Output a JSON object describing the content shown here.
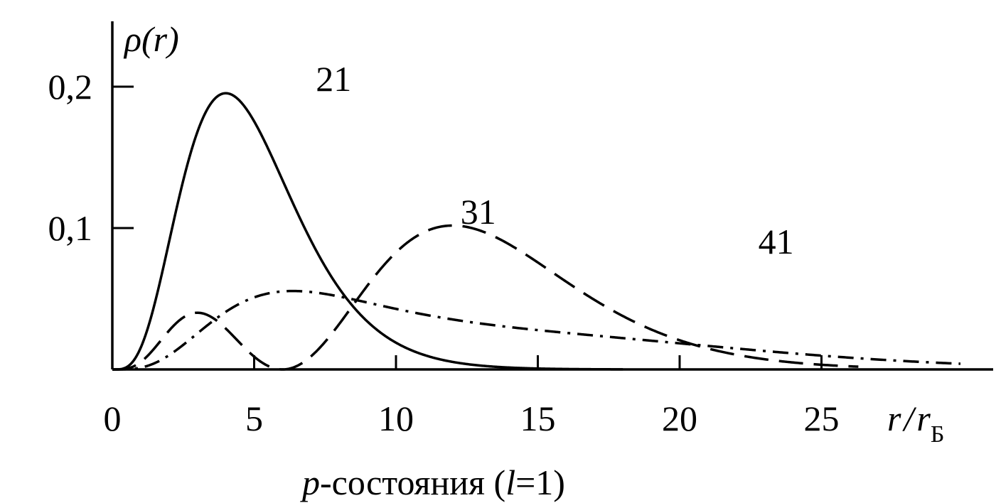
{
  "chart_data": {
    "type": "line",
    "xlim": [
      0,
      30
    ],
    "ylim": [
      0,
      0.24
    ],
    "grid": false,
    "x_ticks": [
      0,
      5,
      10,
      15,
      20,
      25
    ],
    "x_tick_labels": [
      "0",
      "5",
      "10",
      "15",
      "20",
      "25"
    ],
    "y_ticks": [
      0.1,
      0.2
    ],
    "y_tick_labels": [
      "0,1",
      "0,2"
    ],
    "ylabel": "ρ(r)",
    "xlabel_main": "r",
    "xlabel_slash": "/",
    "xlabel_denom": "r",
    "xlabel_sub": "Б",
    "caption_prefix": "p",
    "caption_text": "-состояния (",
    "caption_l": "l",
    "caption_suffix": "=1)",
    "series": [
      {
        "name": "21",
        "style": "solid"
      },
      {
        "name": "31",
        "style": "dashed"
      },
      {
        "name": "41",
        "style": "dashdot"
      }
    ]
  },
  "colors": {
    "ink": "#000000",
    "background": "#ffffff"
  }
}
